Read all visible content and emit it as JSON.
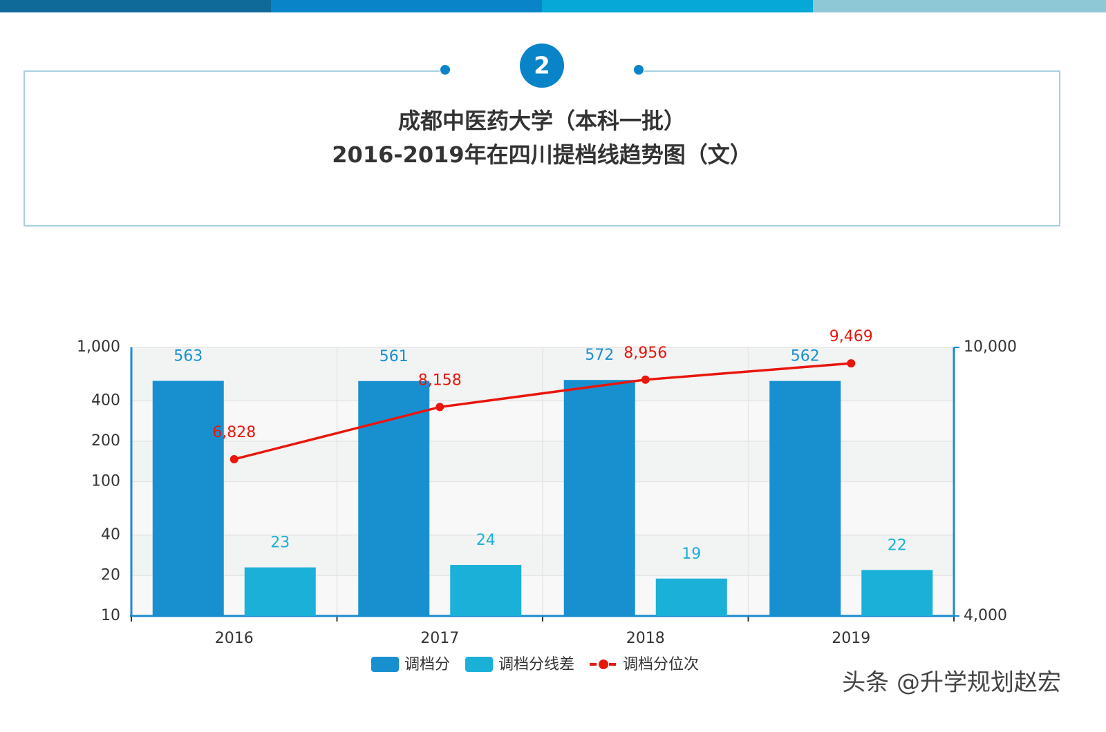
{
  "chart_data": {
    "type": "bar",
    "badge": "2",
    "title": "成都中医药大学（本科一批）",
    "subtitle": "2016-2019年在四川提档线趋势图（文）",
    "watermark": "头条 @升学规划赵宏",
    "categories": [
      "2016",
      "2017",
      "2018",
      "2019"
    ],
    "series": [
      {
        "name": "调档分",
        "color": "#1890d0",
        "values": [
          563,
          561,
          572,
          562
        ]
      },
      {
        "name": "调档分线差",
        "color": "#1ab0d8",
        "values": [
          23,
          24,
          19,
          22
        ]
      },
      {
        "name": "调档分位次",
        "type": "line",
        "axis": "y2",
        "color": "#e8160c",
        "values": [
          6828,
          8158,
          8956,
          9469
        ],
        "value_labels": [
          "6,828",
          "8,158",
          "8,956",
          "9,469"
        ]
      }
    ],
    "ylim": [
      10,
      1000
    ],
    "yticks": [
      10,
      20,
      40,
      100,
      200,
      400,
      {
        "value": 1000,
        "label": "1,000"
      }
    ],
    "y2lim": [
      4000,
      10000
    ],
    "y2ticks": [
      {
        "value": 4000,
        "label": "4,000"
      },
      {
        "value": 10000,
        "label": "10,000"
      }
    ],
    "log_scale": true,
    "y2_log_scale": true,
    "grid": true
  }
}
